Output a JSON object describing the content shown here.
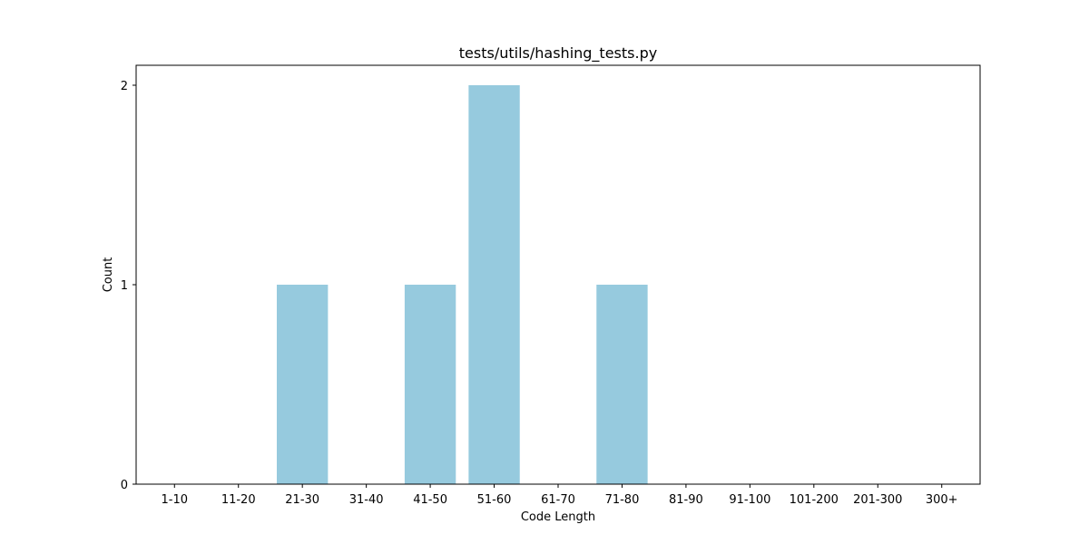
{
  "chart_data": {
    "type": "bar",
    "title": "tests/utils/hashing_tests.py",
    "xlabel": "Code Length",
    "ylabel": "Count",
    "categories": [
      "1-10",
      "11-20",
      "21-30",
      "31-40",
      "41-50",
      "51-60",
      "61-70",
      "71-80",
      "81-90",
      "91-100",
      "101-200",
      "201-300",
      "300+"
    ],
    "values": [
      0,
      0,
      1,
      0,
      1,
      2,
      0,
      1,
      0,
      0,
      0,
      0,
      0
    ],
    "ylim": [
      0,
      2.1
    ],
    "yticks": [
      0,
      1,
      2
    ],
    "bar_color": "#96cade",
    "grid": false,
    "legend": "none"
  }
}
